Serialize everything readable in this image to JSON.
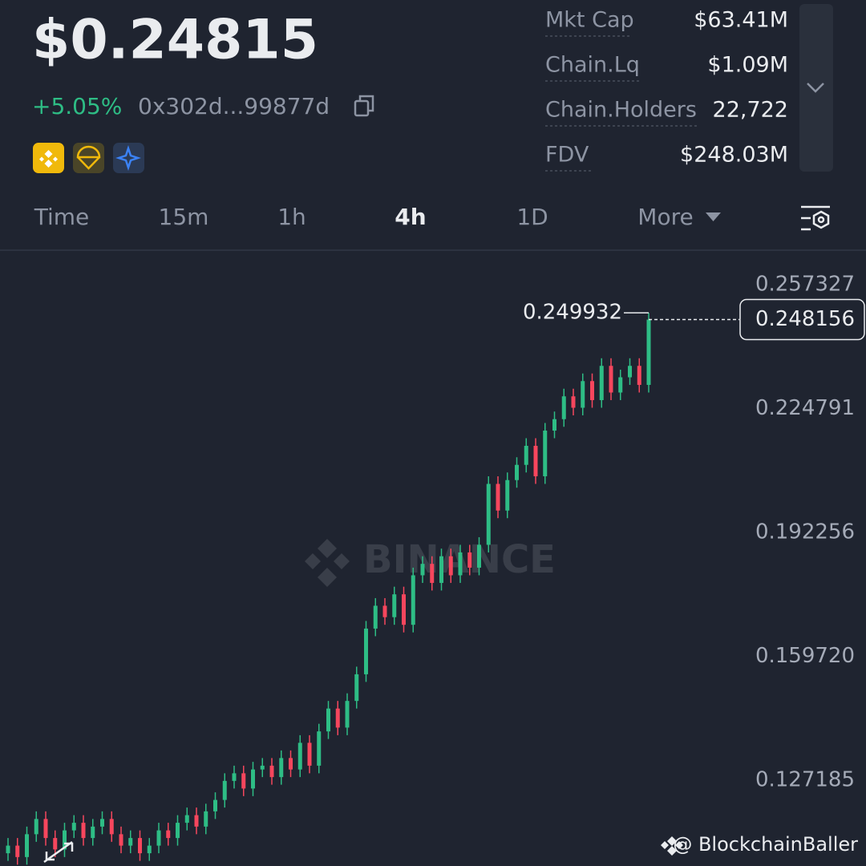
{
  "header": {
    "price": "$0.24815",
    "change": "+5.05%",
    "address": "0x302d...99877d"
  },
  "stats": [
    {
      "label": "Mkt Cap",
      "value": "$63.41M"
    },
    {
      "label": "Chain.Lq",
      "value": "$1.09M"
    },
    {
      "label": "Chain.Holders",
      "value": "22,722"
    },
    {
      "label": "FDV",
      "value": "$248.03M"
    }
  ],
  "tabs": [
    "Time",
    "15m",
    "1h",
    "4h",
    "1D",
    "More"
  ],
  "chart_data": {
    "type": "candlestick",
    "ylim": [
      0.10465,
      0.26575
    ],
    "yticks": [
      0.257327,
      0.224791,
      0.192256,
      {
        "value": 0.15972,
        "label": "0.159720"
      },
      0.127185
    ],
    "grid": false,
    "up_color": "#2ebd85",
    "down_color": "#f6465d",
    "open": [
      0.108,
      0.11,
      0.107,
      0.113,
      0.117,
      0.112,
      0.109,
      0.114,
      0.116,
      0.112,
      0.115,
      0.117,
      0.113,
      0.11,
      0.112,
      0.108,
      0.11,
      0.114,
      0.112,
      0.116,
      0.118,
      0.115,
      0.119,
      0.122,
      0.127,
      0.129,
      0.125,
      0.13,
      0.131,
      0.128,
      0.133,
      0.13,
      0.137,
      0.131,
      0.14,
      0.146,
      0.141,
      0.148,
      0.155,
      0.167,
      0.173,
      0.17,
      0.176,
      0.168,
      0.181,
      0.184,
      0.179,
      0.186,
      0.181,
      0.187,
      0.183,
      0.189,
      0.205,
      0.198,
      0.206,
      0.21,
      0.215,
      0.207,
      0.219,
      0.222,
      0.228,
      0.225,
      0.232,
      0.227,
      0.236,
      0.229,
      0.233,
      0.236,
      0.231
    ],
    "high": [
      0.112,
      0.112,
      0.115,
      0.119,
      0.119,
      0.114,
      0.116,
      0.118,
      0.118,
      0.117,
      0.119,
      0.119,
      0.115,
      0.114,
      0.114,
      0.112,
      0.116,
      0.116,
      0.118,
      0.12,
      0.12,
      0.121,
      0.124,
      0.129,
      0.131,
      0.131,
      0.132,
      0.133,
      0.133,
      0.135,
      0.135,
      0.139,
      0.139,
      0.142,
      0.148,
      0.148,
      0.15,
      0.157,
      0.169,
      0.175,
      0.175,
      0.178,
      0.178,
      0.183,
      0.186,
      0.186,
      0.188,
      0.188,
      0.189,
      0.189,
      0.191,
      0.207,
      0.207,
      0.208,
      0.212,
      0.217,
      0.217,
      0.221,
      0.224,
      0.23,
      0.23,
      0.234,
      0.234,
      0.238,
      0.238,
      0.235,
      0.238,
      0.238,
      0.249932
    ],
    "low": [
      0.106,
      0.105,
      0.105,
      0.111,
      0.11,
      0.107,
      0.107,
      0.112,
      0.11,
      0.11,
      0.113,
      0.111,
      0.108,
      0.108,
      0.106,
      0.106,
      0.108,
      0.11,
      0.11,
      0.114,
      0.113,
      0.113,
      0.117,
      0.12,
      0.125,
      0.123,
      0.123,
      0.128,
      0.126,
      0.126,
      0.128,
      0.128,
      0.129,
      0.129,
      0.138,
      0.139,
      0.139,
      0.146,
      0.153,
      0.165,
      0.168,
      0.168,
      0.166,
      0.166,
      0.179,
      0.177,
      0.177,
      0.179,
      0.179,
      0.181,
      0.181,
      0.187,
      0.196,
      0.196,
      0.204,
      0.208,
      0.205,
      0.205,
      0.217,
      0.22,
      0.223,
      0.223,
      0.225,
      0.225,
      0.227,
      0.227,
      0.231,
      0.229,
      0.229
    ],
    "close": [
      0.11,
      0.107,
      0.113,
      0.117,
      0.112,
      0.109,
      0.114,
      0.116,
      0.112,
      0.115,
      0.117,
      0.113,
      0.11,
      0.112,
      0.108,
      0.11,
      0.114,
      0.112,
      0.116,
      0.118,
      0.115,
      0.119,
      0.122,
      0.127,
      0.129,
      0.125,
      0.13,
      0.131,
      0.128,
      0.133,
      0.13,
      0.137,
      0.131,
      0.14,
      0.146,
      0.141,
      0.148,
      0.155,
      0.167,
      0.173,
      0.17,
      0.176,
      0.168,
      0.181,
      0.184,
      0.179,
      0.186,
      0.181,
      0.187,
      0.183,
      0.189,
      0.205,
      0.198,
      0.206,
      0.21,
      0.215,
      0.207,
      0.219,
      0.222,
      0.228,
      0.225,
      0.232,
      0.227,
      0.236,
      0.229,
      0.233,
      0.236,
      0.231,
      0.248156
    ]
  },
  "watermark": "BINANCE",
  "credit": "@ BlockchainBaller"
}
